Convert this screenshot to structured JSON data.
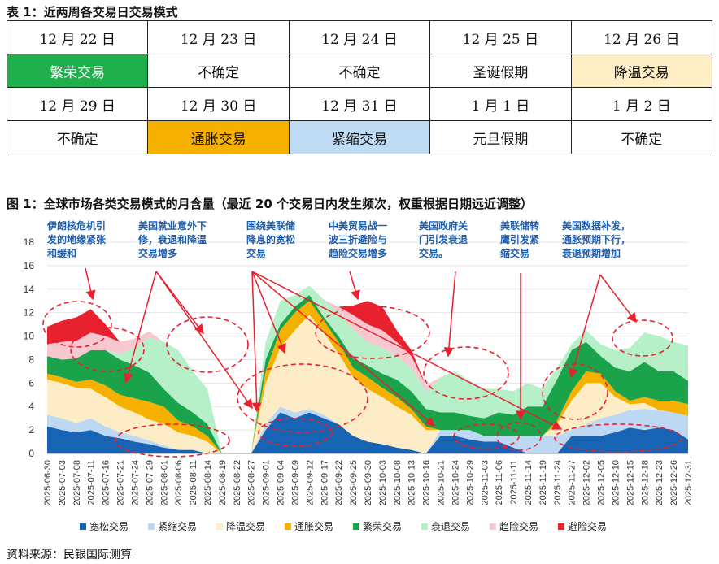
{
  "table": {
    "caption": "表 1：近两周各交易日交易模式",
    "rows": [
      [
        {
          "text": "12 月 22 日",
          "style": ""
        },
        {
          "text": "12 月 23 日",
          "style": ""
        },
        {
          "text": "12 月 24 日",
          "style": ""
        },
        {
          "text": "12 月 25 日",
          "style": ""
        },
        {
          "text": "12 月 26 日",
          "style": ""
        }
      ],
      [
        {
          "text": "繁荣交易",
          "style": "green"
        },
        {
          "text": "不确定",
          "style": ""
        },
        {
          "text": "不确定",
          "style": ""
        },
        {
          "text": "圣诞假期",
          "style": ""
        },
        {
          "text": "降温交易",
          "style": "lightorange"
        }
      ],
      [
        {
          "text": "12 月 29 日",
          "style": ""
        },
        {
          "text": "12 月 30 日",
          "style": ""
        },
        {
          "text": "12 月 31 日",
          "style": ""
        },
        {
          "text": "1 月 1 日",
          "style": ""
        },
        {
          "text": "1 月 2 日",
          "style": ""
        }
      ],
      [
        {
          "text": "不确定",
          "style": ""
        },
        {
          "text": "通胀交易",
          "style": "orange"
        },
        {
          "text": "紧缩交易",
          "style": "lightblue"
        },
        {
          "text": "元旦假期",
          "style": ""
        },
        {
          "text": "不确定",
          "style": ""
        }
      ]
    ]
  },
  "chart_caption": "图 1：全球市场各类交易模式的月含量（最近 20 个交易日内发生频次，权重根据日期远近调整）",
  "source": "资料来源：民银国际测算",
  "annotations": [
    "伊朗核危机引\n发的地缘紧张\n和缓和",
    "美国就业意外下\n修，衰退和降温\n交易增多",
    "围绕美联储\n降息的宽松\n交易",
    "中美贸易战一\n波三折避险与\n趋险交易增多",
    "美国政府关\n门引发衰退\n交易。",
    "美联储转\n鹰引发紧\n缩交易",
    "美国数据补发，\n通胀预期下行，\n衰退预期增加"
  ],
  "chart_data": {
    "type": "area",
    "stacked": true,
    "ylim": [
      0,
      18
    ],
    "yticks": [
      0,
      2,
      4,
      6,
      8,
      10,
      12,
      14,
      16,
      18
    ],
    "x_ticks": [
      "2025-06-30",
      "2025-07-03",
      "2025-07-08",
      "2025-07-11",
      "2025-07-16",
      "2025-07-21",
      "2025-07-24",
      "2025-07-29",
      "2025-08-01",
      "2025-08-06",
      "2025-08-11",
      "2025-08-14",
      "2025-08-19",
      "2025-08-22",
      "2025-08-27",
      "2025-09-01",
      "2025-09-04",
      "2025-09-09",
      "2025-09-12",
      "2025-09-17",
      "2025-09-22",
      "2025-09-25",
      "2025-09-30",
      "2025-10-03",
      "2025-10-08",
      "2025-10-13",
      "2025-10-16",
      "2025-10-21",
      "2025-10-24",
      "2025-10-29",
      "2025-11-03",
      "2025-11-06",
      "2025-11-11",
      "2025-11-14",
      "2025-11-19",
      "2025-11-24",
      "2025-11-27",
      "2025-12-02",
      "2025-12-05",
      "2025-12-10",
      "2025-12-15",
      "2025-12-18",
      "2025-12-23",
      "2025-12-26",
      "2025-12-31"
    ],
    "legend_position": "bottom",
    "series": [
      {
        "name": "宽松交易",
        "color": "#1864b4",
        "values": [
          2.3,
          2.0,
          1.8,
          2.0,
          1.5,
          1.3,
          1.0,
          0.8,
          0.5,
          0.3,
          0.3,
          0,
          0,
          0,
          0,
          2.0,
          3.5,
          3.0,
          3.5,
          3.0,
          2.5,
          1.5,
          1.0,
          0.8,
          0.5,
          0.3,
          0,
          1.5,
          1.5,
          1.2,
          1.0,
          1.0,
          0.5,
          0,
          0,
          0,
          1.5,
          1.5,
          1.5,
          1.8,
          2.2,
          2.0,
          2.2,
          2.0,
          1.2
        ]
      },
      {
        "name": "紧缩交易",
        "color": "#bcd8f3",
        "values": [
          1.0,
          1.0,
          0.8,
          1.0,
          0.8,
          0.5,
          0.5,
          0.3,
          0.2,
          0,
          0,
          0,
          0,
          0,
          0,
          0.5,
          0.5,
          0.5,
          0.3,
          0.3,
          0,
          0,
          0,
          0,
          0,
          0,
          0,
          0.5,
          0.5,
          0.8,
          0.5,
          0.5,
          1.0,
          1.5,
          1.5,
          1.5,
          0.5,
          1.0,
          1.5,
          1.5,
          1.5,
          1.8,
          1.5,
          1.5,
          2.0
        ]
      },
      {
        "name": "降温交易",
        "color": "#fdedc6",
        "values": [
          3.0,
          3.0,
          3.0,
          2.5,
          2.5,
          2.2,
          2.0,
          1.8,
          1.8,
          1.5,
          1.2,
          1.0,
          0,
          0,
          0,
          3.5,
          5.0,
          7.0,
          8.0,
          7.0,
          6.0,
          5.0,
          4.5,
          4.0,
          3.5,
          3.0,
          2.0,
          0,
          0,
          0,
          0,
          0,
          0,
          0,
          0,
          1.0,
          2.5,
          3.5,
          3.0,
          1.5,
          0.5,
          0.5,
          0,
          0,
          0
        ]
      },
      {
        "name": "通胀交易",
        "color": "#f6b000",
        "values": [
          0.5,
          0.5,
          0.5,
          0.8,
          1.0,
          1.0,
          1.2,
          1.5,
          1.5,
          1.0,
          0.8,
          0.5,
          0,
          0,
          0,
          1.0,
          1.5,
          1.5,
          1.2,
          1.0,
          1.0,
          0.8,
          1.0,
          0.8,
          0.8,
          0.5,
          0.3,
          0,
          0,
          0,
          0,
          0,
          0,
          0,
          0,
          0.3,
          0.8,
          1.0,
          0.8,
          0.5,
          0.3,
          0.5,
          0.8,
          1.0,
          1.0
        ]
      },
      {
        "name": "繁荣交易",
        "color": "#1aa34a",
        "values": [
          1.5,
          1.5,
          2.0,
          2.5,
          3.0,
          3.0,
          2.8,
          2.5,
          1.5,
          1.5,
          1.2,
          1.0,
          0,
          0,
          0,
          1.0,
          0.5,
          0.5,
          0.5,
          0.3,
          0.5,
          0.8,
          1.0,
          1.2,
          1.5,
          1.5,
          1.5,
          1.5,
          1.5,
          1.2,
          1.5,
          2.0,
          1.8,
          2.5,
          2.5,
          3.5,
          3.5,
          2.5,
          1.5,
          2.0,
          2.5,
          3.0,
          2.5,
          2.5,
          2.0
        ]
      },
      {
        "name": "衰退交易",
        "color": "#b5f0c8",
        "values": [
          0,
          0,
          0,
          0,
          0,
          0.5,
          1.5,
          3.0,
          4.0,
          4.5,
          3.5,
          3.0,
          0,
          0,
          0,
          1.5,
          2.0,
          1.0,
          0.8,
          1.5,
          2.0,
          2.5,
          2.0,
          2.2,
          2.0,
          2.0,
          1.5,
          3.0,
          3.5,
          3.0,
          2.5,
          2.0,
          2.0,
          2.0,
          1.5,
          1.0,
          0.5,
          1.0,
          1.0,
          1.5,
          2.0,
          2.5,
          3.0,
          2.5,
          3.0
        ]
      },
      {
        "name": "趋险交易",
        "color": "#f8c8d0",
        "values": [
          1.0,
          1.5,
          1.5,
          1.5,
          1.2,
          1.0,
          0.8,
          0.5,
          0,
          0,
          0,
          0,
          0,
          0,
          0,
          0,
          0,
          0,
          0,
          0,
          0.5,
          1.2,
          1.5,
          1.5,
          1.2,
          1.0,
          0.5,
          0,
          0,
          0,
          0,
          0,
          0,
          0,
          0,
          0,
          0,
          0,
          0,
          0,
          0,
          0,
          0,
          0,
          0
        ]
      },
      {
        "name": "避险交易",
        "color": "#e8212e",
        "values": [
          1.5,
          1.8,
          2.0,
          2.0,
          1.0,
          0,
          0,
          0,
          0,
          0,
          0,
          0,
          0,
          0,
          0,
          0,
          0,
          0,
          0,
          0,
          0,
          0.8,
          2.0,
          2.0,
          1.0,
          0.5,
          0,
          0,
          0,
          0,
          0,
          0,
          0,
          0,
          0,
          0,
          0,
          0,
          0,
          0,
          0,
          0,
          0,
          0,
          0
        ]
      }
    ]
  }
}
